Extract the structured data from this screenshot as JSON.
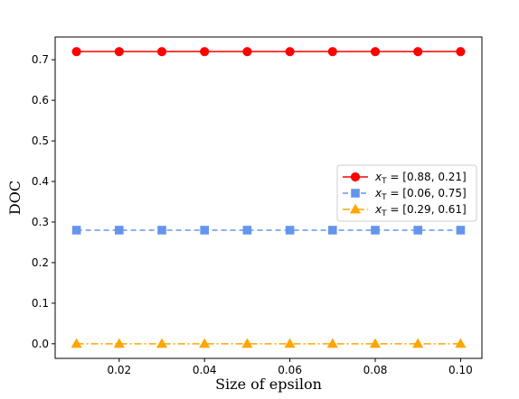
{
  "chart_data": {
    "type": "line",
    "xlabel": "Size of epsilon",
    "ylabel": "DOC",
    "xlim": [
      0.005,
      0.105
    ],
    "ylim": [
      -0.036,
      0.756
    ],
    "xticks": [
      0.02,
      0.04,
      0.06,
      0.08,
      0.1
    ],
    "xtick_labels": [
      "0.02",
      "0.04",
      "0.06",
      "0.08",
      "0.10"
    ],
    "yticks": [
      0.0,
      0.1,
      0.2,
      0.3,
      0.4,
      0.5,
      0.6,
      0.7
    ],
    "ytick_labels": [
      "0.0",
      "0.1",
      "0.2",
      "0.3",
      "0.4",
      "0.5",
      "0.6",
      "0.7"
    ],
    "grid": false,
    "legend_position": "center-right",
    "x": [
      0.01,
      0.02,
      0.03,
      0.04,
      0.05,
      0.06,
      0.07,
      0.08,
      0.09,
      0.1
    ],
    "series": [
      {
        "name": "x_T = [0.88, 0.21]",
        "legend_prefix": "x",
        "legend_sub": "T",
        "legend_value": " = [0.88, 0.21]",
        "values": [
          0.72,
          0.72,
          0.72,
          0.72,
          0.72,
          0.72,
          0.72,
          0.72,
          0.72,
          0.72
        ],
        "color": "#ff0000",
        "marker": "circle",
        "linestyle": "solid"
      },
      {
        "name": "x_T = [0.06, 0.75]",
        "legend_prefix": "x",
        "legend_sub": "T",
        "legend_value": " = [0.06, 0.75]",
        "values": [
          0.28,
          0.28,
          0.28,
          0.28,
          0.28,
          0.28,
          0.28,
          0.28,
          0.28,
          0.28
        ],
        "color": "#6495ed",
        "marker": "square",
        "linestyle": "dashed"
      },
      {
        "name": "x_T = [0.29, 0.61]",
        "legend_prefix": "x",
        "legend_sub": "T",
        "legend_value": " = [0.29, 0.61]",
        "values": [
          0.0,
          0.0,
          0.0,
          0.0,
          0.0,
          0.0,
          0.0,
          0.0,
          0.0,
          0.0
        ],
        "color": "#ffa500",
        "marker": "triangle",
        "linestyle": "dashdot"
      }
    ]
  }
}
